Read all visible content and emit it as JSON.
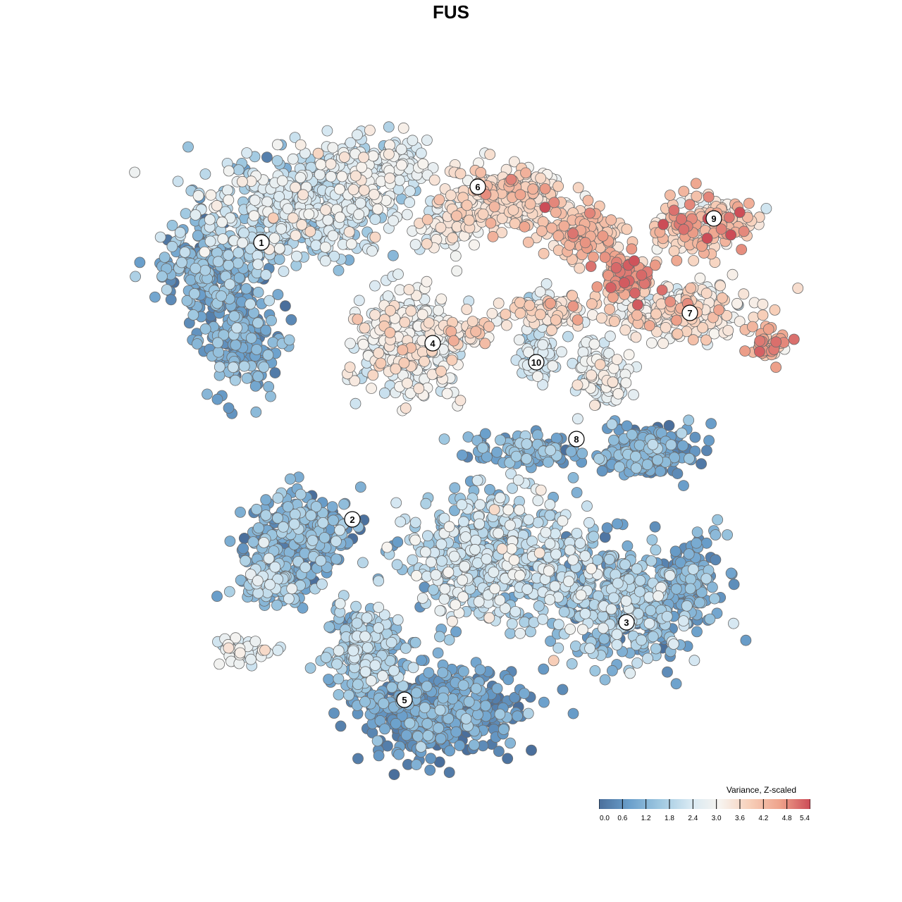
{
  "title": "FUS",
  "chart_data": {
    "type": "scatter",
    "title": "FUS",
    "xlabel": "",
    "ylabel": "",
    "grid": false,
    "axes_visible": false,
    "point_style": "filled circles with grey outline",
    "color_scale": {
      "title": "Variance, Z-scaled",
      "min": 0.0,
      "max": 5.4,
      "ticks": [
        "0.0",
        "0.6",
        "1.2",
        "1.8",
        "2.4",
        "3.0",
        "3.6",
        "4.2",
        "4.8",
        "5.4"
      ],
      "colors": [
        "#4a6f9c",
        "#6a9fcb",
        "#9dc7e0",
        "#d6e8f2",
        "#f7f4f0",
        "#f7cfb9",
        "#eea28b",
        "#cc4c57"
      ]
    },
    "legend_position": "bottom-right",
    "cluster_labels": [
      {
        "label": "1",
        "mean_value": 1.8
      },
      {
        "label": "2",
        "mean_value": 1.1
      },
      {
        "label": "3",
        "mean_value": 1.2
      },
      {
        "label": "4",
        "mean_value": 2.9
      },
      {
        "label": "5",
        "mean_value": 0.9
      },
      {
        "label": "6",
        "mean_value": 3.3
      },
      {
        "label": "7",
        "mean_value": 3.4
      },
      {
        "label": "8",
        "mean_value": 1.1
      },
      {
        "label": "9",
        "mean_value": 3.8
      },
      {
        "label": "10",
        "mean_value": 2.3
      }
    ]
  }
}
